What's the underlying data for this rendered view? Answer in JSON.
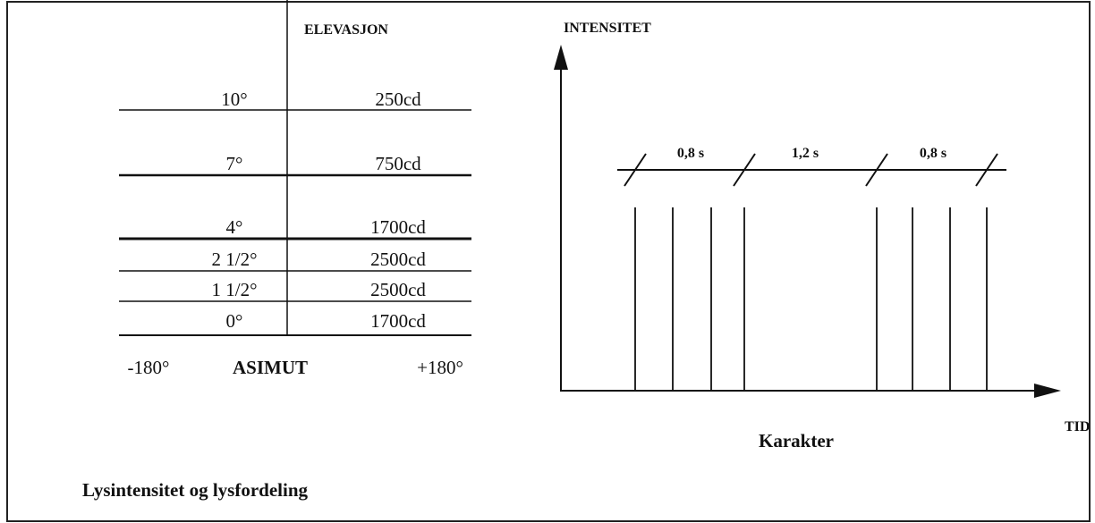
{
  "table": {
    "header": "ELEVASJON",
    "rows": [
      [
        "10°",
        "250cd"
      ],
      [
        "7°",
        "750cd"
      ],
      [
        "4°",
        "1700cd"
      ],
      [
        "2 1/2°",
        "2500cd"
      ],
      [
        "1 1/2°",
        "2500cd"
      ],
      [
        "0°",
        "1700cd"
      ]
    ],
    "footer": [
      "-180°",
      "ASIMUT",
      "+180°"
    ],
    "caption": "Lysintensitet og lysfordeling"
  },
  "timing": {
    "y_axis_label": "INTENSITET",
    "x_axis_label": "TID",
    "intervals": [
      "0,8 s",
      "1,2 s",
      "0,8 s"
    ],
    "caption": "Karakter"
  }
}
